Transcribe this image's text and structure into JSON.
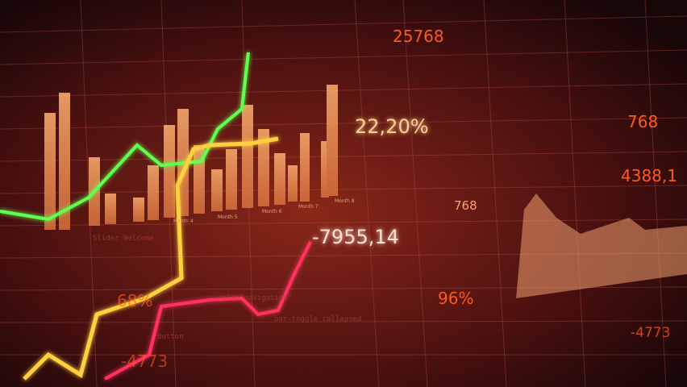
{
  "figures": {
    "top": "25768",
    "top_right": "768",
    "percent_main": "22,20%",
    "right_value": "4388,1",
    "mid_right": "768",
    "negative": "-7955,14",
    "percent_left": "68%",
    "percent_mid": "96%",
    "bottom_left": "-4773",
    "bottom_right": "-4773"
  },
  "months": [
    "Month 4",
    "Month 5",
    "Month 6",
    "Month 7",
    "Month 8"
  ],
  "code_lines": [
    "Slider Welcome",
    "role=\"navigation\"",
    "bar-toggle collapsed",
    "Button"
  ]
}
